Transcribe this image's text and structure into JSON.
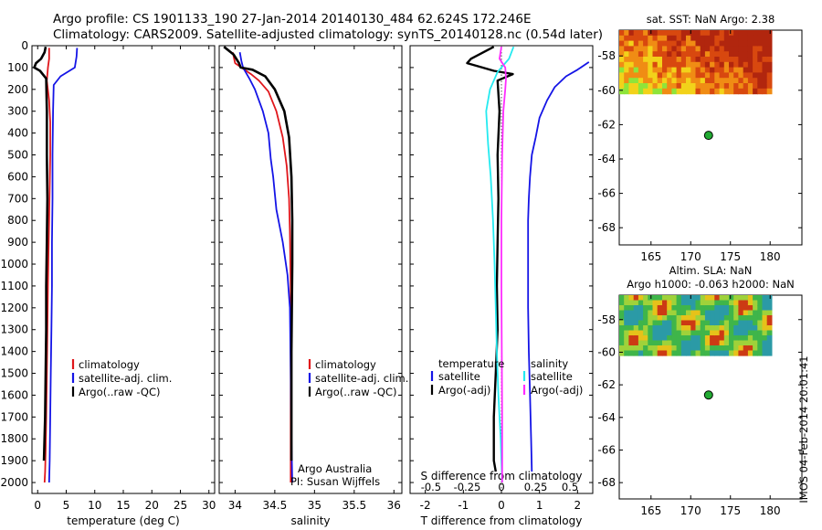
{
  "header": {
    "line1": "Argo profile: CS 1901133_190 27-Jan-2014 20140130_484 62.624S 172.246E",
    "line2": "Climatology: CARS2009. Satellite-adjusted climatology: synTS_20140128.nc (0.54d later)"
  },
  "colors": {
    "climatology": "#e0161b",
    "satellite": "#1414e6",
    "argo": "#000000",
    "salinity_diff": "#ff2bff",
    "temperature_diff": "#24eaf0",
    "float_marker": "#22aa33"
  },
  "chart_data": [
    {
      "type": "line",
      "xlabel": "temperature (deg C)",
      "ylim": [
        2050,
        0
      ],
      "xlim": [
        -1,
        31
      ],
      "xticks": [
        0,
        5,
        10,
        15,
        20,
        25,
        30
      ],
      "yticks": [
        0,
        100,
        200,
        300,
        400,
        500,
        600,
        700,
        800,
        900,
        1000,
        1100,
        1200,
        1300,
        1400,
        1500,
        1600,
        1700,
        1800,
        1900,
        2000
      ],
      "legend": [
        "climatology",
        "satellite-adj. clim.",
        "Argo(..raw -QC)"
      ],
      "series": [
        {
          "name": "climatology",
          "x": [
            2.0,
            2.0,
            1.8,
            1.6,
            2.0,
            2.2,
            2.2,
            2.1,
            2.0,
            1.9,
            1.8,
            1.7,
            1.6,
            1.5,
            1.4,
            1.3,
            1.2
          ],
          "y": [
            10,
            60,
            100,
            160,
            250,
            350,
            500,
            650,
            800,
            950,
            1100,
            1300,
            1500,
            1700,
            1850,
            1950,
            2000
          ]
        },
        {
          "name": "satellite-adj. clim.",
          "x": [
            6.9,
            6.8,
            6.5,
            4.0,
            2.8,
            2.7,
            2.6,
            2.6,
            2.5,
            2.5,
            2.4,
            2.3,
            2.2,
            2.1,
            2.0
          ],
          "y": [
            10,
            50,
            100,
            140,
            180,
            300,
            500,
            700,
            900,
            1100,
            1300,
            1500,
            1700,
            1900,
            2000
          ]
        },
        {
          "name": "Argo(..raw -QC)",
          "x": [
            1.4,
            1.2,
            0.6,
            -0.3,
            -0.6,
            0.4,
            1.5,
            1.6,
            1.6,
            1.7,
            1.6,
            1.5,
            1.5,
            1.4,
            1.3,
            1.1
          ],
          "y": [
            5,
            30,
            60,
            80,
            100,
            115,
            150,
            300,
            500,
            700,
            900,
            1100,
            1300,
            1500,
            1700,
            1900
          ]
        }
      ]
    },
    {
      "type": "line",
      "xlabel": "salinity",
      "ylim": [
        2050,
        0
      ],
      "xlim": [
        33.8,
        36.1
      ],
      "xticks": [
        34,
        34.5,
        35,
        35.5,
        36
      ],
      "legend": [
        "climatology",
        "satellite-adj. clim.",
        "Argo(..raw -QC)"
      ],
      "annotations": [
        "Argo Australia",
        "PI: Susan Wijffels"
      ],
      "series": [
        {
          "name": "climatology",
          "x": [
            33.97,
            34.0,
            34.08,
            34.2,
            34.3,
            34.42,
            34.52,
            34.6,
            34.65,
            34.68,
            34.69,
            34.7,
            34.7,
            34.7,
            34.7,
            34.7
          ],
          "y": [
            30,
            80,
            100,
            130,
            160,
            210,
            300,
            420,
            550,
            700,
            850,
            1100,
            1400,
            1700,
            1900,
            2000
          ]
        },
        {
          "name": "satellite-adj. clim.",
          "x": [
            34.06,
            34.08,
            34.1,
            34.18,
            34.25,
            34.35,
            34.42,
            34.45,
            34.48,
            34.52,
            34.6,
            34.66,
            34.69,
            34.7,
            34.71,
            34.72
          ],
          "y": [
            30,
            70,
            100,
            150,
            200,
            300,
            400,
            520,
            600,
            750,
            900,
            1050,
            1200,
            1500,
            1800,
            2000
          ]
        },
        {
          "name": "Argo(..raw -QC)",
          "x": [
            33.86,
            33.98,
            34.05,
            34.07,
            34.22,
            34.38,
            34.5,
            34.62,
            34.68,
            34.71,
            34.72,
            34.72,
            34.71,
            34.71,
            34.71
          ],
          "y": [
            5,
            40,
            80,
            100,
            110,
            140,
            200,
            300,
            420,
            600,
            800,
            1000,
            1400,
            1700,
            1900
          ]
        }
      ]
    },
    {
      "type": "line",
      "xlabel": "T difference from climatology",
      "xlabel2": "S difference from climatology",
      "ylim": [
        2050,
        0
      ],
      "xlim": [
        -2.4,
        2.4
      ],
      "xticks": [
        -2,
        -1,
        0,
        1,
        2
      ],
      "xticks_s": [
        "-0.5",
        "-0.25",
        "0",
        "0.25",
        "0.5"
      ],
      "legend_temperature": [
        "temperature",
        "satellite",
        "Argo(-adj)"
      ],
      "legend_salinity": [
        "salinity",
        "satellite",
        "Argo(-adj)"
      ],
      "series": [
        {
          "name": "temperature satellite",
          "x": [
            2.3,
            2.0,
            1.7,
            1.4,
            1.2,
            1.0,
            0.9,
            0.8,
            0.75,
            0.72,
            0.7,
            0.7,
            0.7,
            0.72,
            0.75,
            0.78,
            0.8
          ],
          "y": [
            75,
            110,
            140,
            190,
            250,
            330,
            420,
            500,
            600,
            700,
            800,
            1000,
            1200,
            1400,
            1600,
            1800,
            1950
          ]
        },
        {
          "name": "temperature Argo(-adj)",
          "x": [
            -0.2,
            -0.8,
            -0.9,
            -0.5,
            -0.2,
            0.3,
            -0.1,
            -0.05,
            -0.1,
            -0.08,
            -0.1,
            -0.12,
            -0.1,
            -0.15,
            -0.2,
            -0.2,
            -0.15
          ],
          "y": [
            5,
            60,
            80,
            100,
            115,
            130,
            160,
            300,
            500,
            700,
            900,
            1100,
            1300,
            1500,
            1700,
            1900,
            1950
          ]
        },
        {
          "name": "salinity satellite",
          "x": [
            0.32,
            0.2,
            -0.1,
            -0.3,
            -0.4,
            -0.35,
            -0.28,
            -0.22,
            -0.18,
            -0.15,
            -0.12,
            -0.1,
            -0.08,
            -0.05,
            -0.02,
            0.0,
            0.02
          ],
          "y": [
            5,
            60,
            120,
            200,
            300,
            450,
            600,
            800,
            1000,
            1200,
            1400,
            1500,
            1600,
            1700,
            1800,
            1900,
            2000
          ]
        },
        {
          "name": "salinity Argo(-adj)",
          "x": [
            0.0,
            -0.05,
            0.1,
            0.12,
            0.1,
            0.05,
            0.02,
            0.0,
            0.0,
            0.01,
            0.02,
            0.02
          ],
          "y": [
            5,
            60,
            100,
            150,
            200,
            300,
            500,
            800,
            1100,
            1400,
            1700,
            2000
          ]
        }
      ]
    },
    {
      "type": "heatmap",
      "title": "sat. SST: NaN Argo: 2.38",
      "xlim": [
        161,
        184
      ],
      "ylim": [
        -69,
        -56.5
      ],
      "xticks": [
        165,
        170,
        175,
        180
      ],
      "yticks": [
        -58,
        -60,
        -62,
        -64,
        -66,
        -68
      ],
      "argo_position": {
        "lon": 172.246,
        "lat": -62.624
      }
    },
    {
      "type": "heatmap",
      "title": "Altim. SLA: NaN",
      "subtitle": "Argo h1000: -0.063 h2000: NaN",
      "xlim": [
        161,
        184
      ],
      "ylim": [
        -69,
        -56.5
      ],
      "xticks": [
        165,
        170,
        175,
        180
      ],
      "yticks": [
        -58,
        -60,
        -62,
        -64,
        -66,
        -68
      ],
      "argo_position": {
        "lon": 172.246,
        "lat": -62.624
      }
    }
  ],
  "footer": {
    "stamp": "IMOS 04-Feb-2014 20:01:41"
  }
}
